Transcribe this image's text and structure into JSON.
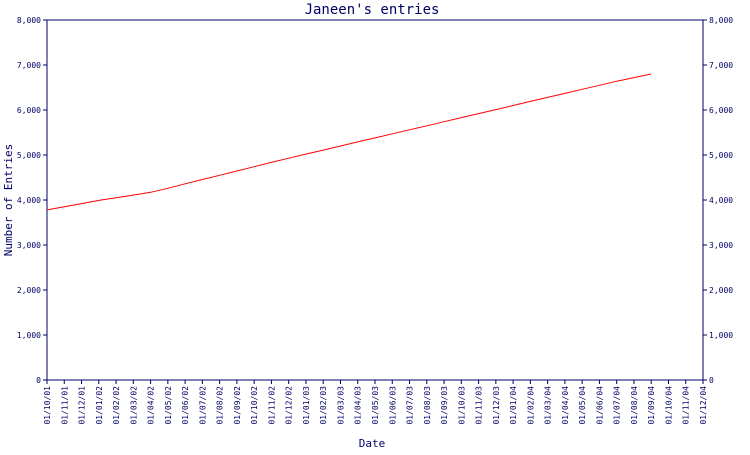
{
  "chart_data": {
    "type": "line",
    "title": "Janeen's entries",
    "xlabel": "Date",
    "ylabel": "Number of Entries",
    "ylim": [
      0,
      8000
    ],
    "yticks": [
      0,
      1000,
      2000,
      3000,
      4000,
      5000,
      6000,
      7000,
      8000
    ],
    "ytick_labels": [
      "0",
      "1,000",
      "2,000",
      "3,000",
      "4,000",
      "5,000",
      "6,000",
      "7,000",
      "8,000"
    ],
    "right_axis": true,
    "grid": false,
    "categories": [
      "01/10/01",
      "01/11/01",
      "01/12/01",
      "01/01/02",
      "01/02/02",
      "01/03/02",
      "01/04/02",
      "01/05/02",
      "01/06/02",
      "01/07/02",
      "01/08/02",
      "01/09/02",
      "01/10/02",
      "01/11/02",
      "01/12/02",
      "01/01/03",
      "01/02/03",
      "01/03/03",
      "01/04/03",
      "01/05/03",
      "01/06/03",
      "01/07/03",
      "01/08/03",
      "01/09/03",
      "01/10/03",
      "01/11/03",
      "01/12/03",
      "01/01/04",
      "01/02/04",
      "01/03/04",
      "01/04/04",
      "01/05/04",
      "01/06/04",
      "01/07/04",
      "01/08/04",
      "01/09/04",
      "01/10/04",
      "01/11/04",
      "01/12/04"
    ],
    "series": [
      {
        "color": "#ff0000",
        "values": [
          3780,
          3850,
          3920,
          3990,
          4050,
          4110,
          4170,
          4260,
          4360,
          4455,
          4550,
          4645,
          4740,
          4835,
          4930,
          5020,
          5110,
          5200,
          5290,
          5380,
          5470,
          5560,
          5650,
          5740,
          5830,
          5920,
          6010,
          6100,
          6190,
          6280,
          6370,
          6460,
          6550,
          6640,
          6720,
          6800,
          null,
          null,
          null
        ]
      }
    ],
    "colors": {
      "axis": "#000066",
      "text": "#000066",
      "line": "#ff0000"
    }
  }
}
